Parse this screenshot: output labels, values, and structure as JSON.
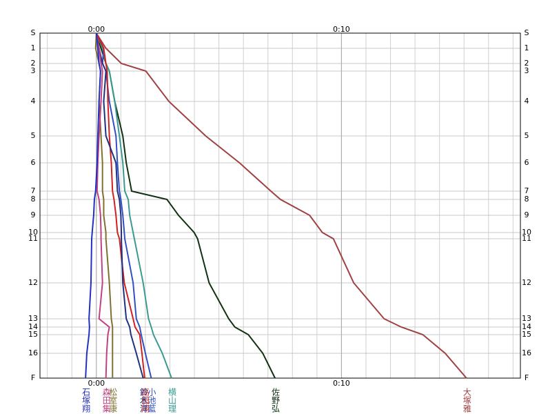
{
  "chart_data": {
    "type": "line",
    "controls": [
      "S",
      "1",
      "2",
      "3",
      "4",
      "5",
      "6",
      "7",
      "8",
      "9",
      "10",
      "11",
      "12",
      "13",
      "14",
      "15",
      "16",
      "F"
    ],
    "control_positions": [
      0,
      22,
      44,
      55,
      99,
      149,
      188,
      229,
      241,
      264,
      289,
      298,
      362,
      414,
      426,
      437,
      464,
      500
    ],
    "ylim": [
      0,
      500
    ],
    "xlim": [
      -2.3,
      17.3
    ],
    "xticks": [
      {
        "value": 0,
        "label": "0:00"
      },
      {
        "value": 10,
        "label": "0:10"
      }
    ],
    "grid": true,
    "grid_step": 1,
    "series": [
      {
        "name": "大塚雅",
        "color": "#a04040",
        "values": [
          0,
          0.39,
          1.02,
          2.02,
          2.96,
          4.46,
          5.84,
          7.12,
          7.51,
          8.7,
          9.22,
          9.67,
          10.5,
          11.74,
          12.44,
          13.32,
          14.23,
          15.1
        ]
      },
      {
        "name": "佐野弘",
        "color": "#103010",
        "values": [
          0,
          0.19,
          0.39,
          0.53,
          0.75,
          1.08,
          1.22,
          1.44,
          2.88,
          3.35,
          3.99,
          4.13,
          4.6,
          5.4,
          5.65,
          6.2,
          6.79,
          7.29
        ]
      },
      {
        "name": "横山理",
        "color": "#3a9a90",
        "values": [
          0,
          0.25,
          0.39,
          0.53,
          0.75,
          0.94,
          1.08,
          1.16,
          1.3,
          1.36,
          1.5,
          1.55,
          1.91,
          2.13,
          2.24,
          2.33,
          2.69,
          3.07
        ]
      },
      {
        "name": "小池藍",
        "color": "#3050c0",
        "values": [
          0,
          0.3,
          0.25,
          0.39,
          0.53,
          0.8,
          0.86,
          0.94,
          1,
          1.08,
          1.14,
          1.16,
          1.5,
          1.63,
          1.77,
          1.83,
          2,
          2.24
        ]
      },
      {
        "name": "高田翔",
        "color": "#d02020",
        "values": [
          0,
          0.3,
          0.39,
          0.44,
          0.47,
          0.53,
          0.61,
          0.66,
          0.72,
          0.8,
          0.86,
          0.94,
          1.14,
          1.5,
          1.58,
          1.77,
          1.86,
          1.97
        ]
      },
      {
        "name": "鈴木洋",
        "color": "#203080",
        "values": [
          0,
          0.11,
          0.25,
          0.39,
          0.3,
          0.39,
          0.8,
          0.86,
          0.94,
          1,
          1.02,
          1.02,
          1.08,
          1.22,
          1.36,
          1.41,
          1.63,
          1.91
        ]
      },
      {
        "name": "松室康",
        "color": "#807030",
        "values": [
          0,
          -0.03,
          0.11,
          0.17,
          0.11,
          0.19,
          0.25,
          0.25,
          0.3,
          0.3,
          0.39,
          0.39,
          0.53,
          0.61,
          0.66,
          0.66,
          0.66,
          0.66
        ]
      },
      {
        "name": "森田集",
        "color": "#c04080",
        "values": [
          0,
          0.11,
          0.19,
          0.25,
          0.19,
          0.11,
          0.06,
          0.03,
          0.11,
          0.17,
          0.19,
          0.19,
          0.25,
          0.11,
          0.53,
          0.47,
          0.42,
          0.39
        ]
      },
      {
        "name": "石塚翔",
        "color": "#2030c0",
        "values": [
          0,
          0.06,
          0.11,
          0.17,
          0.11,
          0.06,
          0.03,
          -0.03,
          -0.08,
          -0.11,
          -0.17,
          -0.19,
          -0.22,
          -0.3,
          -0.28,
          -0.3,
          -0.39,
          -0.44
        ]
      }
    ]
  }
}
